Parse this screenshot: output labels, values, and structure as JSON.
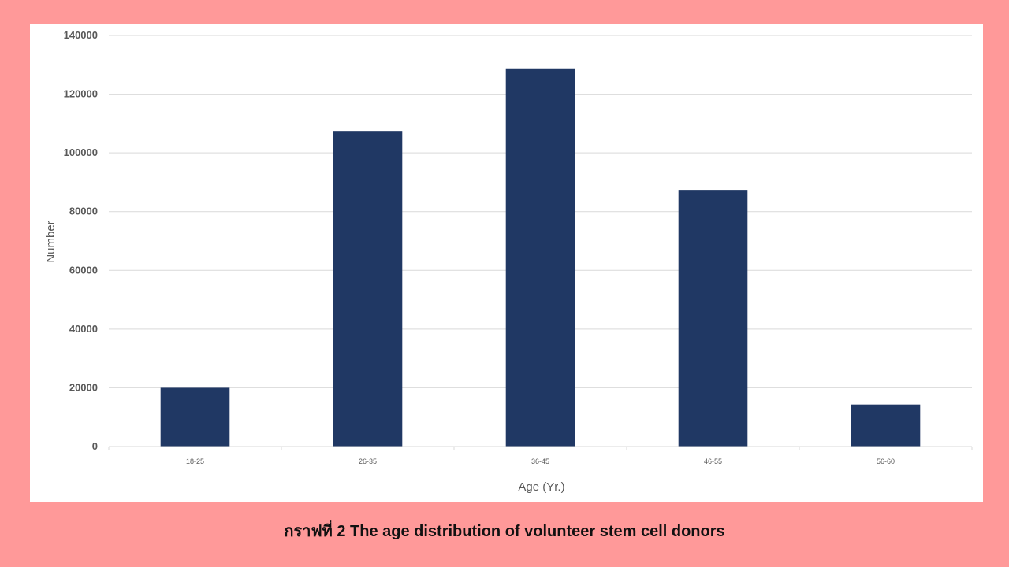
{
  "caption": "กราฟที่ 2 The age distribution of volunteer stem cell donors",
  "chart_data": {
    "type": "bar",
    "title": "",
    "xlabel": "Age (Yr.)",
    "ylabel": "Number",
    "categories": [
      "18-25",
      "26-35",
      "36-45",
      "46-55",
      "56-60"
    ],
    "values": [
      20000,
      107500,
      128800,
      87400,
      14300
    ],
    "ylim": [
      0,
      140000
    ],
    "yticks": [
      0,
      20000,
      40000,
      60000,
      80000,
      100000,
      120000,
      140000
    ],
    "grid": true,
    "legend": "none",
    "bar_color": "#203864",
    "grid_color": "#d9d9d9",
    "background_color": "#ff9999"
  }
}
